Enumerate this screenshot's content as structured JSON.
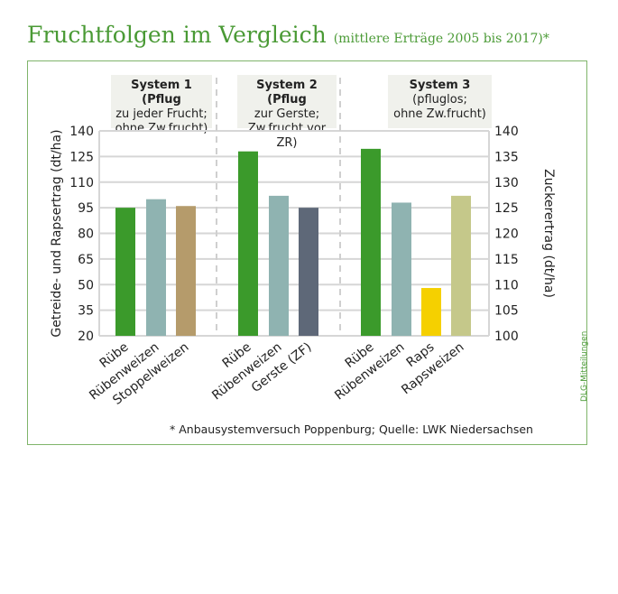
{
  "title": "Fruchtfolgen im Vergleich",
  "subtitle": "(mittlere Erträge 2005 bis 2017)*",
  "footnote": "* Anbausystemversuch Poppenburg; Quelle: LWK Niedersachsen",
  "credit": "DLG-Mitteilungen",
  "chart_data": {
    "type": "bar",
    "ylabel": "Getreide- und Rapsertrag (dt/ha)",
    "y2label": "Zuckerertrag (dt/ha)",
    "ylim": [
      20,
      140
    ],
    "y2lim": [
      100,
      140
    ],
    "yticks": [
      "20",
      "35",
      "50",
      "65",
      "80",
      "95",
      "110",
      "125",
      "140"
    ],
    "y2ticks": [
      "100",
      "105",
      "110",
      "115",
      "120",
      "125",
      "130",
      "135",
      "140"
    ],
    "grid": true,
    "groups": [
      {
        "label": "System 1 (Pflug zu jeder Frucht; ohne Zw.frucht)",
        "lines": [
          "System 1 (Pflug",
          "zu jeder Frucht;",
          "ohne Zw.frucht)"
        ],
        "bars": [
          {
            "category": "Rübe",
            "value": 125,
            "axis": "right",
            "color": "#3b9a2b"
          },
          {
            "category": "Rübenweizen",
            "value": 100,
            "axis": "left",
            "color": "#8fb3b1"
          },
          {
            "category": "Stoppelweizen",
            "value": 96,
            "axis": "left",
            "color": "#b59b6b"
          }
        ]
      },
      {
        "label": "System 2 (Pflug zur Gerste; Zw.frucht vor ZR)",
        "lines": [
          "System 2 (Pflug",
          "zur Gerste;",
          "Zw.frucht vor ZR)"
        ],
        "bars": [
          {
            "category": "Rübe",
            "value": 136,
            "axis": "right",
            "color": "#3b9a2b"
          },
          {
            "category": "Rübenweizen",
            "value": 102,
            "axis": "left",
            "color": "#8fb3b1"
          },
          {
            "category": "Gerste (ZF)",
            "value": 95,
            "axis": "left",
            "color": "#5e6878"
          }
        ]
      },
      {
        "label": "System 3 (pfluglos; ohne Zw.frucht)",
        "lines": [
          "System 3",
          "(pfluglos;",
          "ohne Zw.frucht)"
        ],
        "bars": [
          {
            "category": "Rübe",
            "value": 136.5,
            "axis": "right",
            "color": "#3b9a2b"
          },
          {
            "category": "Rübenweizen",
            "value": 98,
            "axis": "left",
            "color": "#8fb3b1"
          },
          {
            "category": "Raps",
            "value": 48,
            "axis": "left",
            "color": "#f5d000"
          },
          {
            "category": "Rapsweizen",
            "value": 102,
            "axis": "left",
            "color": "#c5c88a"
          }
        ]
      }
    ]
  }
}
